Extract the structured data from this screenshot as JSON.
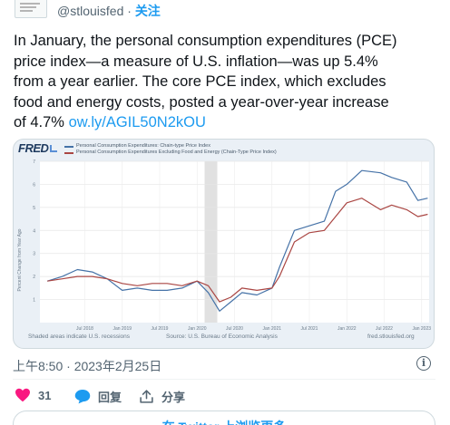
{
  "header": {
    "handle": "@stlouisfed",
    "separator": "·",
    "follow_label": "关注"
  },
  "tweet": {
    "lines": [
      "In January, the personal consumption expenditures (PCE)",
      "price index—a measure of U.S. inflation—was up 5.4%",
      "from a year earlier. The core PCE index, which excludes",
      "food and energy costs, posted a year-over-year increase",
      "of 4.7%"
    ],
    "link": "ow.ly/AGIL50N2kOU"
  },
  "card": {
    "logo": "FRED",
    "footer_left": "Shaded areas indicate U.S. recessions",
    "footer_center": "Source: U.S. Bureau of Economic Analysis",
    "footer_right": "fred.stlouisfed.org"
  },
  "chart_data": {
    "type": "line",
    "ylabel": "Percent Change from Year Ago",
    "yticks": [
      1,
      2,
      3,
      4,
      5,
      6,
      7
    ],
    "ylim": [
      0,
      7
    ],
    "xlim": [
      2017.9,
      2023.1
    ],
    "x_ticks": [
      {
        "x": 2018.5,
        "label": "Jul 2018"
      },
      {
        "x": 2019.0,
        "label": "Jan 2019"
      },
      {
        "x": 2019.5,
        "label": "Jul 2019"
      },
      {
        "x": 2020.0,
        "label": "Jan 2020"
      },
      {
        "x": 2020.5,
        "label": "Jul 2020"
      },
      {
        "x": 2021.0,
        "label": "Jan 2021"
      },
      {
        "x": 2021.5,
        "label": "Jul 2021"
      },
      {
        "x": 2022.0,
        "label": "Jan 2022"
      },
      {
        "x": 2022.5,
        "label": "Jul 2022"
      },
      {
        "x": 2023.0,
        "label": "Jan 2023"
      }
    ],
    "recession": [
      2020.1,
      2020.27
    ],
    "grid": true,
    "legend_position": "top-left",
    "series": [
      {
        "name": "Personal Consumption Expenditures: Chain-type Price Index",
        "color": "#4572a7",
        "points": [
          [
            2018.0,
            1.8
          ],
          [
            2018.2,
            2.0
          ],
          [
            2018.4,
            2.3
          ],
          [
            2018.6,
            2.2
          ],
          [
            2018.8,
            1.9
          ],
          [
            2019.0,
            1.4
          ],
          [
            2019.2,
            1.5
          ],
          [
            2019.4,
            1.4
          ],
          [
            2019.6,
            1.4
          ],
          [
            2019.8,
            1.5
          ],
          [
            2020.0,
            1.8
          ],
          [
            2020.15,
            1.3
          ],
          [
            2020.3,
            0.5
          ],
          [
            2020.45,
            0.9
          ],
          [
            2020.6,
            1.3
          ],
          [
            2020.8,
            1.2
          ],
          [
            2021.0,
            1.5
          ],
          [
            2021.1,
            2.4
          ],
          [
            2021.3,
            4.0
          ],
          [
            2021.5,
            4.2
          ],
          [
            2021.7,
            4.4
          ],
          [
            2021.85,
            5.7
          ],
          [
            2022.0,
            6.0
          ],
          [
            2022.2,
            6.6
          ],
          [
            2022.45,
            6.5
          ],
          [
            2022.6,
            6.3
          ],
          [
            2022.8,
            6.1
          ],
          [
            2022.95,
            5.3
          ],
          [
            2023.08,
            5.4
          ]
        ]
      },
      {
        "name": "Personal Consumption Expenditures Excluding Food and Energy (Chain-Type Price Index)",
        "color": "#aa4643",
        "points": [
          [
            2018.0,
            1.8
          ],
          [
            2018.2,
            1.9
          ],
          [
            2018.4,
            2.0
          ],
          [
            2018.6,
            2.0
          ],
          [
            2018.8,
            1.9
          ],
          [
            2019.0,
            1.7
          ],
          [
            2019.2,
            1.6
          ],
          [
            2019.4,
            1.7
          ],
          [
            2019.6,
            1.7
          ],
          [
            2019.8,
            1.6
          ],
          [
            2020.0,
            1.8
          ],
          [
            2020.15,
            1.6
          ],
          [
            2020.3,
            0.9
          ],
          [
            2020.45,
            1.1
          ],
          [
            2020.6,
            1.5
          ],
          [
            2020.8,
            1.4
          ],
          [
            2021.0,
            1.5
          ],
          [
            2021.1,
            2.0
          ],
          [
            2021.3,
            3.5
          ],
          [
            2021.5,
            3.9
          ],
          [
            2021.7,
            4.0
          ],
          [
            2021.85,
            4.6
          ],
          [
            2022.0,
            5.2
          ],
          [
            2022.2,
            5.4
          ],
          [
            2022.45,
            4.9
          ],
          [
            2022.6,
            5.1
          ],
          [
            2022.8,
            4.9
          ],
          [
            2022.95,
            4.6
          ],
          [
            2023.08,
            4.7
          ]
        ]
      }
    ]
  },
  "timestamp": "上午8:50 · 2023年2月25日",
  "actions": {
    "likes": "31",
    "reply_label": "回复",
    "share_label": "分享"
  },
  "bottom_button": "在 Twitter 上浏览更多",
  "colors": {
    "accent": "#1d9bf0",
    "like": "#f91880",
    "muted": "#536471"
  }
}
